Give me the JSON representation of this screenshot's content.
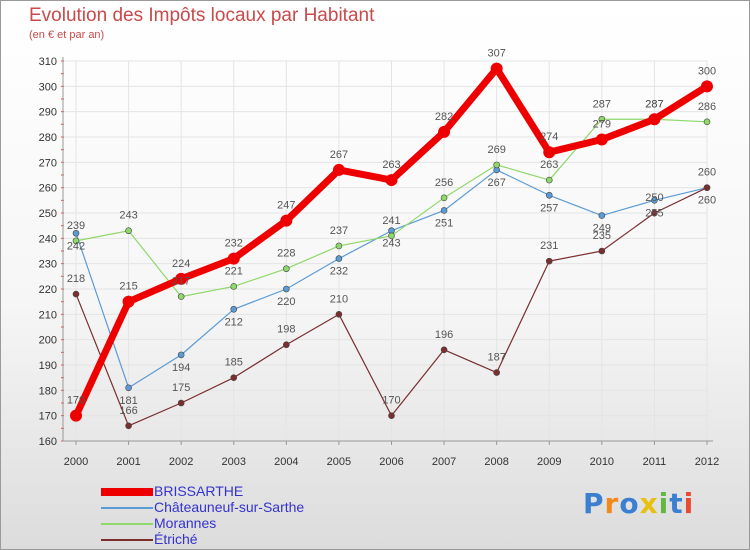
{
  "title": "Evolution des Impôts locaux par Habitant",
  "subtitle": "(en € et par an)",
  "logo": {
    "text": "Proxiti",
    "letters": [
      "P",
      "r",
      "o",
      "x",
      "i",
      "t",
      "i"
    ],
    "colors": [
      "#3a7fd0",
      "#f08a1c",
      "#3a7fd0",
      "#e8c012",
      "#62b842",
      "#3a7fd0",
      "#e84a32"
    ]
  },
  "chart_data": {
    "type": "line",
    "x": [
      "2000",
      "2001",
      "2002",
      "2003",
      "2004",
      "2005",
      "2006",
      "2007",
      "2008",
      "2009",
      "2010",
      "2011",
      "2012"
    ],
    "ylim": [
      160,
      310
    ],
    "yticks": [
      160,
      170,
      180,
      190,
      200,
      210,
      220,
      230,
      240,
      250,
      260,
      270,
      280,
      290,
      300,
      310
    ],
    "grid": true,
    "legend_position": "bottom-left",
    "series": [
      {
        "name": "BRISSARTHE",
        "color": "#ee0000",
        "values": [
          170,
          215,
          224,
          232,
          247,
          267,
          263,
          282,
          307,
          274,
          279,
          287,
          300
        ]
      },
      {
        "name": "Châteauneuf-sur-Sarthe",
        "color": "#5b9bd5",
        "values": [
          242,
          181,
          194,
          212,
          220,
          232,
          243,
          251,
          267,
          257,
          249,
          255,
          260
        ]
      },
      {
        "name": "Morannes",
        "color": "#8fd86a",
        "values": [
          239,
          243,
          217,
          221,
          228,
          237,
          241,
          256,
          269,
          263,
          287,
          287,
          286
        ]
      },
      {
        "name": "Étriché",
        "color": "#7a2e2e",
        "values": [
          218,
          166,
          175,
          185,
          198,
          210,
          170,
          196,
          187,
          231,
          235,
          250,
          260
        ]
      }
    ]
  }
}
